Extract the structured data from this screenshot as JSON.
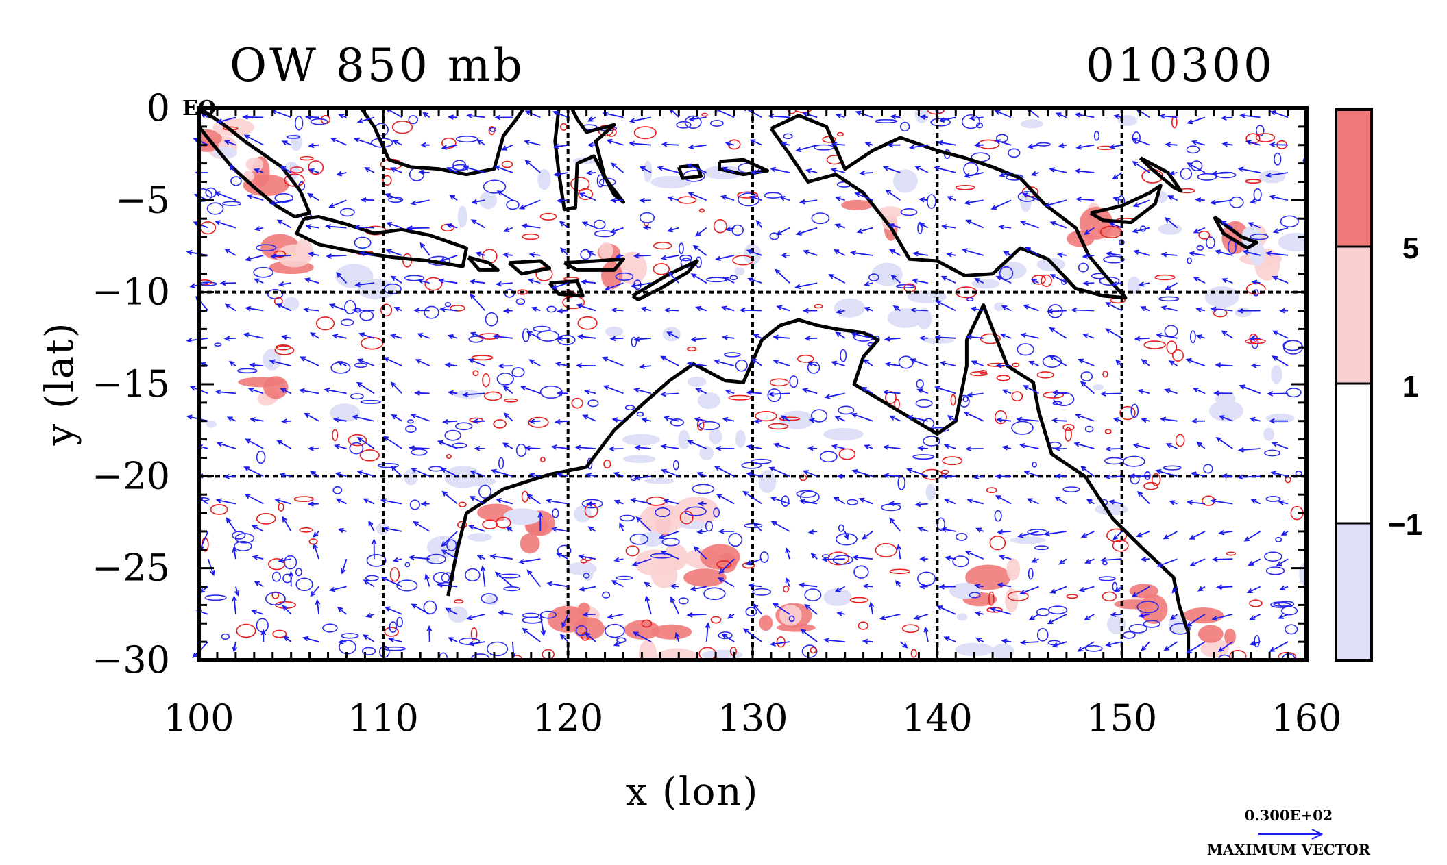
{
  "title_left": "OW 850 mb",
  "title_right": "010300",
  "corner_label": "EQ",
  "colors": {
    "coast": "#000000",
    "vector": "#1b1bf0",
    "contour_pos": "#e81e1e",
    "contour_neg": "#2a2aee",
    "fill_high": "#f07a7a",
    "fill_mid": "#fbd0d0",
    "fill_low": "#dde0f7"
  },
  "chart_data": {
    "type": "map",
    "xlabel": "x (lon)",
    "ylabel": "y (lat)",
    "xlim": [
      100,
      160
    ],
    "ylim": [
      -30,
      0
    ],
    "xticks": [
      {
        "value": 100,
        "label": "100"
      },
      {
        "value": 110,
        "label": "110"
      },
      {
        "value": 120,
        "label": "120"
      },
      {
        "value": 130,
        "label": "130"
      },
      {
        "value": 140,
        "label": "140"
      },
      {
        "value": 150,
        "label": "150"
      },
      {
        "value": 160,
        "label": "160"
      }
    ],
    "yticks": [
      {
        "value": 0,
        "label": "0"
      },
      {
        "value": -5,
        "label": "−5"
      },
      {
        "value": -10,
        "label": "−10"
      },
      {
        "value": -15,
        "label": "−15"
      },
      {
        "value": -20,
        "label": "−20"
      },
      {
        "value": -25,
        "label": "−25"
      },
      {
        "value": -30,
        "label": "−30"
      }
    ],
    "grid": true,
    "colorbar": {
      "levels": [
        {
          "value": 5,
          "label": "5"
        },
        {
          "value": 1,
          "label": "1"
        },
        {
          "value": -1,
          "label": "−1"
        }
      ]
    },
    "vector_reference": {
      "value": "0.300E+02",
      "caption": "MAXIMUM VECTOR"
    },
    "coastlines": [
      {
        "name": "Sumatra",
        "points": [
          [
            100.2,
            -0.1
          ],
          [
            101.5,
            -1.0
          ],
          [
            102.5,
            -1.8
          ],
          [
            103.5,
            -2.5
          ],
          [
            104.5,
            -3.2
          ],
          [
            105.5,
            -4.5
          ],
          [
            106.0,
            -5.7
          ],
          [
            105.2,
            -5.9
          ],
          [
            104.2,
            -5.3
          ],
          [
            103.0,
            -4.3
          ],
          [
            101.8,
            -3.2
          ],
          [
            100.8,
            -2.0
          ],
          [
            100.0,
            -1.0
          ]
        ]
      },
      {
        "name": "Borneo",
        "points": [
          [
            108.8,
            0.0
          ],
          [
            109.5,
            -1.0
          ],
          [
            110.3,
            -2.8
          ],
          [
            111.5,
            -3.2
          ],
          [
            113.0,
            -3.3
          ],
          [
            114.5,
            -3.6
          ],
          [
            116.0,
            -3.3
          ],
          [
            116.5,
            -1.5
          ],
          [
            117.2,
            -0.6
          ],
          [
            117.6,
            0.0
          ]
        ]
      },
      {
        "name": "Java",
        "points": [
          [
            105.7,
            -6.0
          ],
          [
            106.5,
            -5.9
          ],
          [
            108.0,
            -6.3
          ],
          [
            109.5,
            -6.8
          ],
          [
            111.0,
            -6.6
          ],
          [
            112.5,
            -6.9
          ],
          [
            114.5,
            -7.6
          ],
          [
            114.3,
            -8.6
          ],
          [
            112.5,
            -8.3
          ],
          [
            110.5,
            -8.1
          ],
          [
            108.5,
            -7.8
          ],
          [
            106.5,
            -7.4
          ],
          [
            105.3,
            -6.8
          ],
          [
            105.7,
            -6.0
          ]
        ]
      },
      {
        "name": "Bali-Lombok",
        "points": [
          [
            114.6,
            -8.1
          ],
          [
            115.7,
            -8.4
          ],
          [
            116.2,
            -8.8
          ],
          [
            115.2,
            -8.8
          ],
          [
            114.6,
            -8.1
          ]
        ]
      },
      {
        "name": "Sumbawa",
        "points": [
          [
            116.8,
            -8.4
          ],
          [
            118.5,
            -8.3
          ],
          [
            119.0,
            -8.7
          ],
          [
            117.5,
            -9.0
          ],
          [
            116.8,
            -8.4
          ]
        ]
      },
      {
        "name": "Flores",
        "points": [
          [
            119.8,
            -8.4
          ],
          [
            121.5,
            -8.3
          ],
          [
            123.0,
            -8.2
          ],
          [
            122.5,
            -8.8
          ],
          [
            120.5,
            -8.8
          ],
          [
            119.8,
            -8.4
          ]
        ]
      },
      {
        "name": "Sumba",
        "points": [
          [
            119.0,
            -9.5
          ],
          [
            120.5,
            -9.4
          ],
          [
            120.8,
            -10.2
          ],
          [
            119.5,
            -10.1
          ],
          [
            119.0,
            -9.5
          ]
        ]
      },
      {
        "name": "Timor",
        "points": [
          [
            123.5,
            -10.2
          ],
          [
            124.5,
            -9.6
          ],
          [
            125.5,
            -9.0
          ],
          [
            127.0,
            -8.3
          ],
          [
            126.5,
            -8.9
          ],
          [
            125.0,
            -9.8
          ],
          [
            123.8,
            -10.4
          ],
          [
            123.5,
            -10.2
          ]
        ]
      },
      {
        "name": "Sulawesi",
        "points": [
          [
            119.5,
            0.0
          ],
          [
            119.3,
            -1.8
          ],
          [
            119.5,
            -3.5
          ],
          [
            119.8,
            -5.5
          ],
          [
            120.4,
            -5.4
          ],
          [
            120.5,
            -3.0
          ],
          [
            121.4,
            -2.6
          ],
          [
            122.5,
            -4.7
          ],
          [
            123.0,
            -5.1
          ],
          [
            122.0,
            -3.8
          ],
          [
            121.5,
            -1.8
          ],
          [
            122.5,
            -0.9
          ],
          [
            121.0,
            -1.3
          ],
          [
            120.5,
            -0.6
          ],
          [
            120.2,
            0.0
          ]
        ]
      },
      {
        "name": "Seram",
        "points": [
          [
            128.2,
            -2.9
          ],
          [
            129.5,
            -2.8
          ],
          [
            130.8,
            -3.4
          ],
          [
            129.5,
            -3.6
          ],
          [
            128.2,
            -3.3
          ],
          [
            128.2,
            -2.9
          ]
        ]
      },
      {
        "name": "Buru",
        "points": [
          [
            126.0,
            -3.2
          ],
          [
            127.0,
            -3.1
          ],
          [
            127.2,
            -3.7
          ],
          [
            126.2,
            -3.8
          ],
          [
            126.0,
            -3.2
          ]
        ]
      },
      {
        "name": "New Guinea",
        "points": [
          [
            131.0,
            -1.1
          ],
          [
            132.5,
            -0.4
          ],
          [
            134.0,
            -1.0
          ],
          [
            135.0,
            -3.3
          ],
          [
            136.5,
            -2.3
          ],
          [
            138.0,
            -1.6
          ],
          [
            140.0,
            -2.3
          ],
          [
            141.5,
            -2.7
          ],
          [
            143.0,
            -3.2
          ],
          [
            144.5,
            -3.8
          ],
          [
            145.8,
            -5.2
          ],
          [
            147.5,
            -6.5
          ],
          [
            148.2,
            -8.0
          ],
          [
            149.2,
            -9.2
          ],
          [
            150.2,
            -10.3
          ],
          [
            149.0,
            -10.2
          ],
          [
            147.5,
            -9.8
          ],
          [
            146.0,
            -8.2
          ],
          [
            144.5,
            -7.6
          ],
          [
            143.0,
            -9.0
          ],
          [
            141.5,
            -9.1
          ],
          [
            140.0,
            -8.3
          ],
          [
            138.5,
            -8.2
          ],
          [
            137.5,
            -6.5
          ],
          [
            136.0,
            -4.6
          ],
          [
            134.5,
            -3.6
          ],
          [
            133.0,
            -4.0
          ],
          [
            132.0,
            -2.5
          ],
          [
            131.0,
            -1.1
          ]
        ]
      },
      {
        "name": "New Britain",
        "points": [
          [
            148.3,
            -5.7
          ],
          [
            150.0,
            -5.3
          ],
          [
            151.5,
            -4.6
          ],
          [
            152.1,
            -4.2
          ],
          [
            151.8,
            -5.2
          ],
          [
            150.5,
            -6.2
          ],
          [
            149.0,
            -6.1
          ],
          [
            148.3,
            -5.7
          ]
        ]
      },
      {
        "name": "New Ireland",
        "points": [
          [
            151.0,
            -2.7
          ],
          [
            152.5,
            -3.5
          ],
          [
            153.2,
            -4.5
          ],
          [
            152.8,
            -4.3
          ],
          [
            151.5,
            -3.2
          ],
          [
            151.0,
            -2.7
          ]
        ]
      },
      {
        "name": "Solomon Is",
        "points": [
          [
            155.0,
            -5.9
          ],
          [
            156.5,
            -7.0
          ],
          [
            157.3,
            -7.3
          ],
          [
            156.8,
            -7.6
          ],
          [
            155.5,
            -6.8
          ],
          [
            155.0,
            -5.9
          ]
        ]
      },
      {
        "name": "Australia",
        "points": [
          [
            113.5,
            -26.5
          ],
          [
            114.0,
            -24.0
          ],
          [
            114.5,
            -22.0
          ],
          [
            116.5,
            -20.7
          ],
          [
            119.0,
            -19.9
          ],
          [
            121.0,
            -19.5
          ],
          [
            122.5,
            -17.5
          ],
          [
            123.8,
            -16.3
          ],
          [
            125.5,
            -14.8
          ],
          [
            126.8,
            -13.9
          ],
          [
            128.5,
            -14.8
          ],
          [
            129.5,
            -14.9
          ],
          [
            130.5,
            -12.6
          ],
          [
            131.5,
            -11.8
          ],
          [
            132.5,
            -11.5
          ],
          [
            133.5,
            -11.8
          ],
          [
            134.5,
            -12.0
          ],
          [
            136.0,
            -12.2
          ],
          [
            136.8,
            -12.6
          ],
          [
            136.0,
            -13.5
          ],
          [
            135.5,
            -15.0
          ],
          [
            137.0,
            -15.9
          ],
          [
            138.5,
            -16.8
          ],
          [
            140.0,
            -17.7
          ],
          [
            141.0,
            -17.0
          ],
          [
            141.6,
            -14.0
          ],
          [
            141.6,
            -12.6
          ],
          [
            142.5,
            -10.7
          ],
          [
            143.0,
            -12.0
          ],
          [
            143.8,
            -14.0
          ],
          [
            145.2,
            -14.9
          ],
          [
            145.5,
            -16.5
          ],
          [
            146.2,
            -18.8
          ],
          [
            148.0,
            -20.0
          ],
          [
            149.5,
            -22.3
          ],
          [
            151.0,
            -23.8
          ],
          [
            152.8,
            -25.5
          ],
          [
            153.1,
            -27.0
          ],
          [
            153.6,
            -28.5
          ],
          [
            153.6,
            -30.0
          ]
        ]
      }
    ]
  }
}
